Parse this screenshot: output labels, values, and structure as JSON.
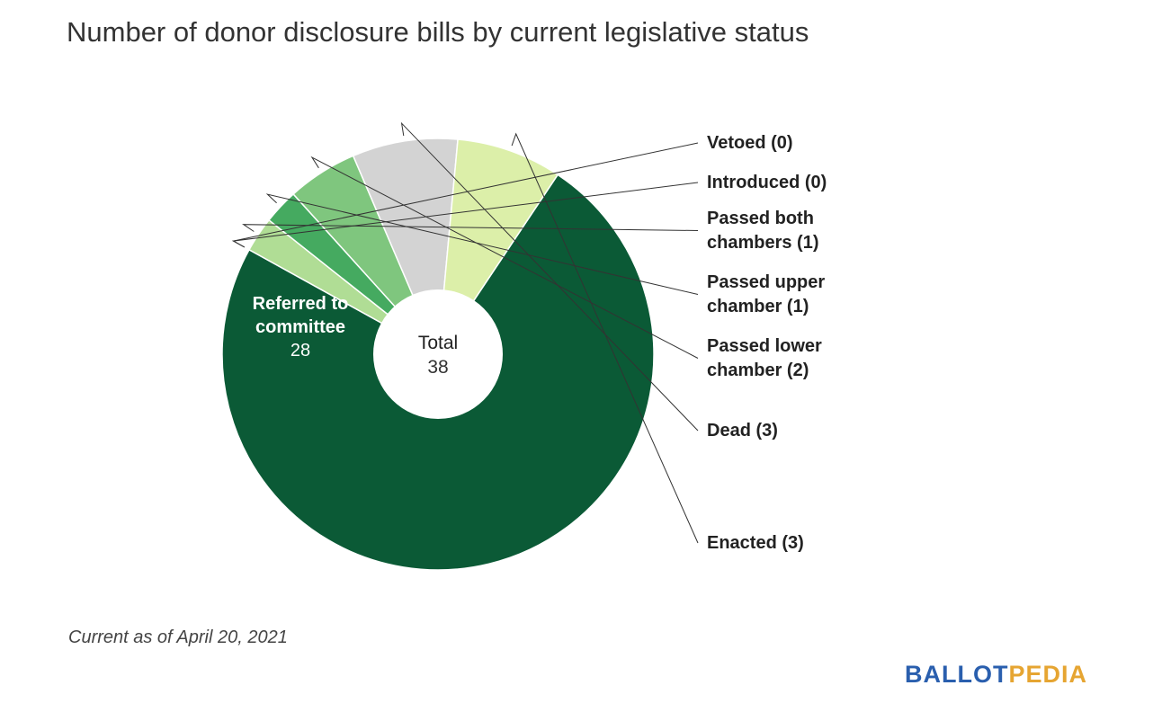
{
  "title": "Number of donor disclosure bills by current legislative status",
  "footnote": "Current as of April 20, 2021",
  "logo": {
    "part1": "BALLOT",
    "part2": "PEDIA"
  },
  "chart_data": {
    "type": "pie",
    "donut": true,
    "center_label": "Total",
    "center_value": "38",
    "slices": [
      {
        "label": "Referred to committee",
        "inside_label": [
          "Referred to",
          "committee"
        ],
        "value": 28,
        "color": "#0b5a36"
      },
      {
        "label": "Vetoed (0)",
        "value": 0,
        "color": "#0b5a36"
      },
      {
        "label": "Introduced (0)",
        "value": 0,
        "color": "#0b5a36"
      },
      {
        "label": [
          "Passed both",
          "chambers (1)"
        ],
        "value": 1,
        "color": "#b0dd95"
      },
      {
        "label": [
          "Passed upper",
          "chamber (1)"
        ],
        "value": 1,
        "color": "#45aa60"
      },
      {
        "label": [
          "Passed lower",
          "chamber (2)"
        ],
        "value": 2,
        "color": "#7fc67e"
      },
      {
        "label": "Dead (3)",
        "value": 3,
        "color": "#d3d3d3"
      },
      {
        "label": "Enacted (3)",
        "value": 3,
        "color": "#dcefa9"
      }
    ]
  }
}
